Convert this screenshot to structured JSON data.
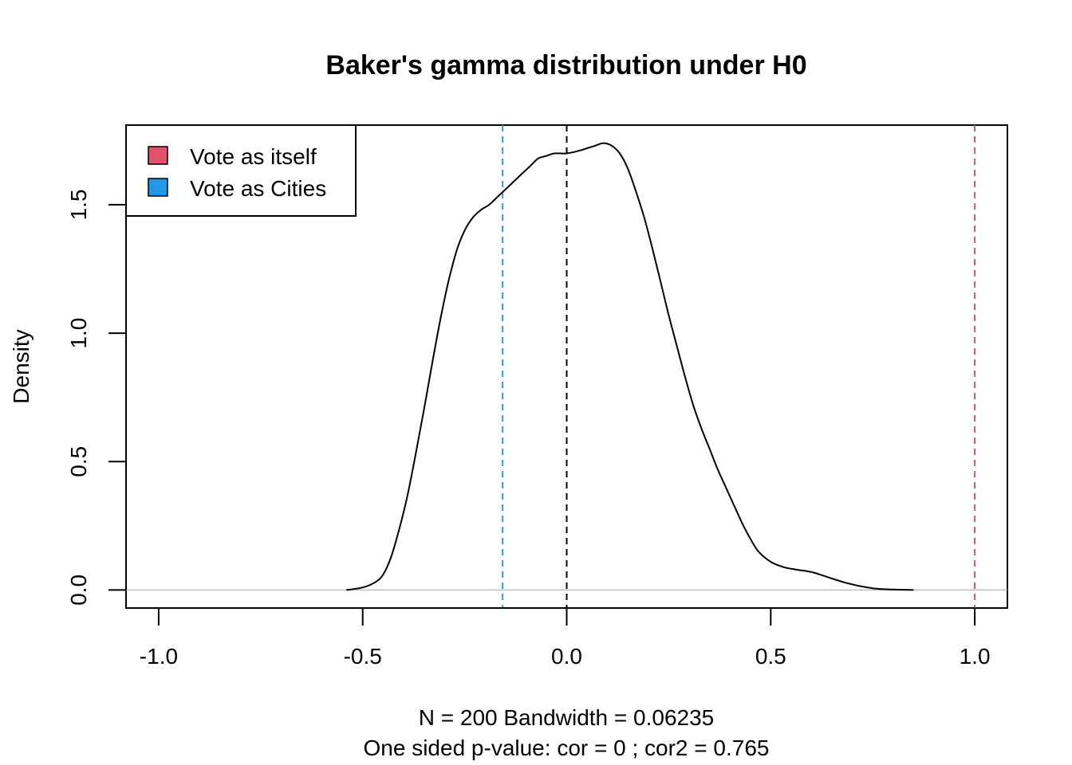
{
  "chart_data": {
    "type": "line",
    "title": "Baker's gamma distribution under H0",
    "xlabel": "N = 200   Bandwidth = 0.06235",
    "sublabel": "One sided p-value: cor = 0  ; cor2 = 0.765",
    "ylabel": "Density",
    "xlim": [
      -1.08,
      1.08
    ],
    "ylim": [
      -0.07,
      1.81
    ],
    "xticks": [
      -1.0,
      -0.5,
      0.0,
      0.5,
      1.0
    ],
    "xtick_labels": [
      "-1.0",
      "-0.5",
      "0.0",
      "0.5",
      "1.0"
    ],
    "yticks": [
      0.0,
      0.5,
      1.0,
      1.5
    ],
    "ytick_labels": [
      "0.0",
      "0.5",
      "1.0",
      "1.5"
    ],
    "grid": false,
    "legend_position": "top-left",
    "series": [
      {
        "color": "#000000",
        "x": [
          -0.54,
          -0.5,
          -0.47,
          -0.45,
          -0.43,
          -0.41,
          -0.39,
          -0.37,
          -0.35,
          -0.33,
          -0.31,
          -0.29,
          -0.27,
          -0.25,
          -0.23,
          -0.21,
          -0.19,
          -0.17,
          -0.15,
          -0.13,
          -0.11,
          -0.09,
          -0.07,
          -0.05,
          -0.03,
          0.0,
          0.03,
          0.05,
          0.07,
          0.09,
          0.11,
          0.13,
          0.15,
          0.17,
          0.19,
          0.21,
          0.23,
          0.25,
          0.27,
          0.29,
          0.31,
          0.33,
          0.35,
          0.37,
          0.39,
          0.41,
          0.43,
          0.45,
          0.47,
          0.5,
          0.53,
          0.56,
          0.6,
          0.64,
          0.68,
          0.72,
          0.76,
          0.8,
          0.85
        ],
        "y": [
          0.0,
          0.01,
          0.03,
          0.06,
          0.13,
          0.24,
          0.37,
          0.53,
          0.7,
          0.88,
          1.05,
          1.2,
          1.32,
          1.4,
          1.45,
          1.48,
          1.5,
          1.53,
          1.56,
          1.59,
          1.62,
          1.65,
          1.68,
          1.69,
          1.7,
          1.7,
          1.71,
          1.72,
          1.73,
          1.74,
          1.73,
          1.7,
          1.64,
          1.55,
          1.45,
          1.33,
          1.2,
          1.07,
          0.95,
          0.83,
          0.72,
          0.63,
          0.55,
          0.47,
          0.4,
          0.33,
          0.26,
          0.2,
          0.15,
          0.11,
          0.09,
          0.08,
          0.07,
          0.05,
          0.03,
          0.015,
          0.005,
          0.002,
          0.0
        ]
      }
    ],
    "vlines": [
      {
        "x": 0.0,
        "color": "#000000"
      },
      {
        "x": -0.157,
        "color": "#28A4D4"
      },
      {
        "x": 1.0,
        "color": "#DF536B"
      }
    ],
    "hline": {
      "y": 0.0,
      "color": "#BEBEBE"
    },
    "legend": [
      {
        "label": "Vote as itself",
        "color": "#DF536B"
      },
      {
        "label": "Vote as Cities",
        "color": "#2297E6"
      }
    ]
  }
}
